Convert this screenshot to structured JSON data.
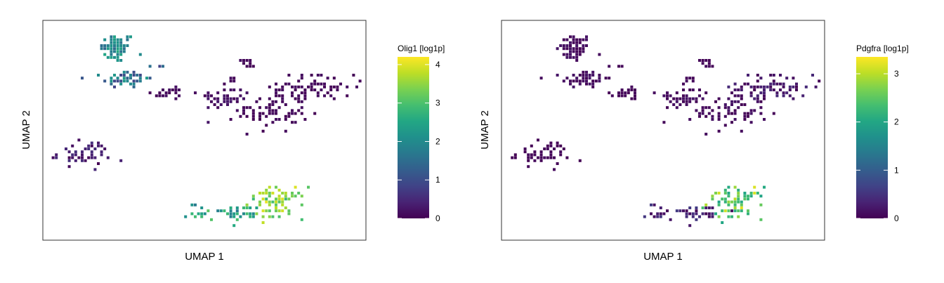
{
  "chart_data": [
    {
      "type": "heatmap",
      "subtype": "hexbin-embedding",
      "xlabel": "UMAP 1",
      "ylabel": "UMAP 2",
      "colorbar": {
        "title": "Olig1 [log1p]",
        "ticks": [
          0,
          1,
          2,
          3,
          4
        ],
        "range": [
          0,
          4.2
        ],
        "colormap": "viridis"
      },
      "clusters": [
        {
          "center": [
            -6.2,
            7.6
          ],
          "spread": [
            0.55,
            0.6
          ],
          "n": 70,
          "value_range": [
            1.3,
            2.6
          ]
        },
        {
          "center": [
            -5.6,
            5.0
          ],
          "spread": [
            0.7,
            0.35
          ],
          "n": 55,
          "value_range": [
            0.8,
            2.3
          ]
        },
        {
          "center": [
            -3.6,
            6.0
          ],
          "spread": [
            0.3,
            0.1
          ],
          "n": 6,
          "value_range": [
            0.7,
            1.6
          ]
        },
        {
          "center": [
            -2.8,
            3.8
          ],
          "spread": [
            0.6,
            0.3
          ],
          "n": 25,
          "value_range": [
            0.0,
            0.2
          ]
        },
        {
          "center": [
            0.8,
            3.3
          ],
          "spread": [
            0.8,
            0.45
          ],
          "n": 45,
          "value_range": [
            0.0,
            0.3
          ]
        },
        {
          "center": [
            3.8,
            2.3
          ],
          "spread": [
            1.1,
            0.9
          ],
          "n": 80,
          "value_range": [
            0.0,
            0.2
          ]
        },
        {
          "center": [
            6.6,
            4.3
          ],
          "spread": [
            1.2,
            0.55
          ],
          "n": 70,
          "value_range": [
            0.0,
            0.2
          ]
        },
        {
          "center": [
            2.1,
            6.3
          ],
          "spread": [
            0.25,
            0.25
          ],
          "n": 10,
          "value_range": [
            0.0,
            0.2
          ]
        },
        {
          "center": [
            1.1,
            4.8
          ],
          "spread": [
            0.2,
            0.2
          ],
          "n": 6,
          "value_range": [
            0.0,
            0.2
          ]
        },
        {
          "center": [
            -8.4,
            -1.4
          ],
          "spread": [
            0.9,
            0.5
          ],
          "n": 55,
          "value_range": [
            0.0,
            0.6
          ]
        },
        {
          "center": [
            4.0,
            -5.6
          ],
          "spread": [
            0.9,
            0.65
          ],
          "n": 75,
          "value_range": [
            2.8,
            4.1
          ]
        },
        {
          "center": [
            1.2,
            -6.4
          ],
          "spread": [
            1.4,
            0.35
          ],
          "n": 45,
          "value_range": [
            1.7,
            3.1
          ]
        },
        {
          "center": [
            0.4,
            3.0
          ],
          "spread": [
            0.15,
            0.15
          ],
          "n": 4,
          "value_range": [
            2.2,
            3.6
          ]
        }
      ]
    },
    {
      "type": "heatmap",
      "subtype": "hexbin-embedding",
      "xlabel": "UMAP 1",
      "ylabel": "UMAP 2",
      "colorbar": {
        "title": "Pdgfra [log1p]",
        "ticks": [
          0,
          1,
          2,
          3
        ],
        "range": [
          0,
          3.35
        ],
        "colormap": "viridis"
      },
      "clusters": [
        {
          "center": [
            -6.2,
            7.6
          ],
          "spread": [
            0.55,
            0.6
          ],
          "n": 70,
          "value_range": [
            0.0,
            0.2
          ]
        },
        {
          "center": [
            -5.6,
            5.0
          ],
          "spread": [
            0.7,
            0.35
          ],
          "n": 55,
          "value_range": [
            0.0,
            0.2
          ]
        },
        {
          "center": [
            -3.6,
            6.0
          ],
          "spread": [
            0.3,
            0.1
          ],
          "n": 6,
          "value_range": [
            0.0,
            0.1
          ]
        },
        {
          "center": [
            -2.8,
            3.8
          ],
          "spread": [
            0.6,
            0.3
          ],
          "n": 25,
          "value_range": [
            0.0,
            0.1
          ]
        },
        {
          "center": [
            0.8,
            3.3
          ],
          "spread": [
            0.8,
            0.45
          ],
          "n": 45,
          "value_range": [
            0.0,
            0.2
          ]
        },
        {
          "center": [
            3.8,
            2.3
          ],
          "spread": [
            1.1,
            0.9
          ],
          "n": 80,
          "value_range": [
            0.0,
            0.2
          ]
        },
        {
          "center": [
            6.6,
            4.3
          ],
          "spread": [
            1.2,
            0.55
          ],
          "n": 70,
          "value_range": [
            0.0,
            0.4
          ]
        },
        {
          "center": [
            2.1,
            6.3
          ],
          "spread": [
            0.25,
            0.25
          ],
          "n": 10,
          "value_range": [
            0.0,
            0.1
          ]
        },
        {
          "center": [
            1.1,
            4.8
          ],
          "spread": [
            0.2,
            0.2
          ],
          "n": 6,
          "value_range": [
            0.0,
            0.1
          ]
        },
        {
          "center": [
            -8.4,
            -1.4
          ],
          "spread": [
            0.9,
            0.5
          ],
          "n": 55,
          "value_range": [
            0.0,
            0.1
          ]
        },
        {
          "center": [
            4.0,
            -5.6
          ],
          "spread": [
            0.9,
            0.65
          ],
          "n": 75,
          "value_range": [
            1.9,
            3.2
          ]
        },
        {
          "center": [
            1.2,
            -6.4
          ],
          "spread": [
            1.4,
            0.35
          ],
          "n": 45,
          "value_range": [
            0.0,
            0.6
          ]
        },
        {
          "center": [
            0.4,
            3.0
          ],
          "spread": [
            0.15,
            0.15
          ],
          "n": 4,
          "value_range": [
            1.5,
            2.3
          ]
        }
      ]
    }
  ]
}
